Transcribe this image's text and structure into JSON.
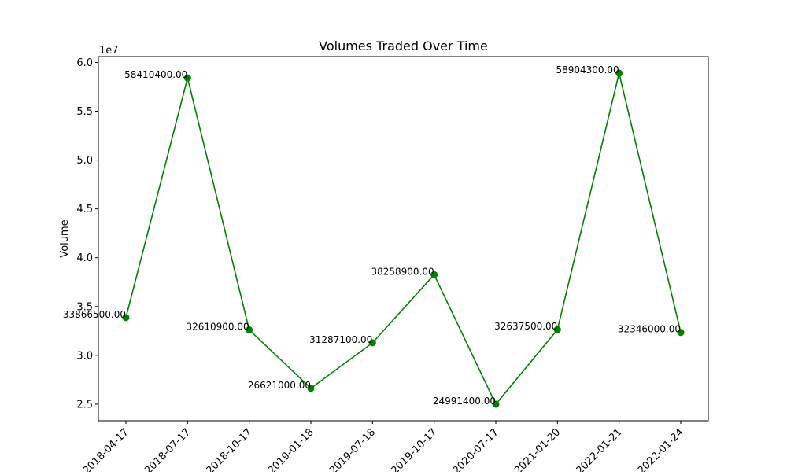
{
  "chart_data": {
    "type": "line",
    "title": "Volumes Traded Over Time",
    "xlabel": "",
    "ylabel": "Volume",
    "y_offset_text": "1e7",
    "x_tick_labels": [
      "2018-04-17",
      "2018-07-17",
      "2018-10-17",
      "2019-01-18",
      "2019-07-18",
      "2019-10-17",
      "2020-07-17",
      "2021-01-20",
      "2022-01-21",
      "2022-01-24"
    ],
    "y_tick_labels": [
      "2.5",
      "3.0",
      "3.5",
      "4.0",
      "4.5",
      "5.0",
      "5.5",
      "6.0"
    ],
    "y_ticks": [
      25000000,
      30000000,
      35000000,
      40000000,
      45000000,
      50000000,
      55000000,
      60000000
    ],
    "ylim": [
      23300000,
      60600000
    ],
    "grid": false,
    "series": [
      {
        "name": "",
        "color": "#008000",
        "marker": "circle",
        "values": [
          33866500,
          58410400,
          32610900,
          26621000,
          31287100,
          38258900,
          24991400,
          32637500,
          58904300,
          32346000
        ],
        "point_labels": [
          "33866500.00",
          "58410400.00",
          "32610900.00",
          "26621000.00",
          "31287100.00",
          "38258900.00",
          "24991400.00",
          "32637500.00",
          "58904300.00",
          "32346000.00"
        ]
      }
    ]
  }
}
